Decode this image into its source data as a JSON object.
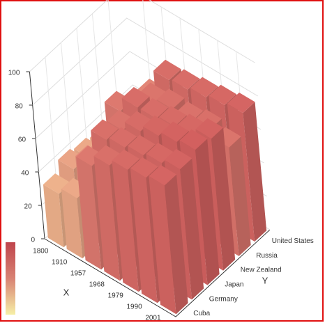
{
  "chart_data": {
    "type": "bar3d",
    "x_name": "X",
    "y_name": "Y",
    "categories": [
      "1800",
      "1910",
      "1957",
      "1968",
      "1979",
      "1990",
      "2001"
    ],
    "series": [
      {
        "name": "Cuba",
        "values": [
          32,
          36,
          62,
          69,
          73,
          75,
          77
        ]
      },
      {
        "name": "Germany",
        "values": [
          38,
          47,
          69,
          71,
          73,
          75,
          78
        ]
      },
      {
        "name": "Japan",
        "values": [
          36,
          44,
          66,
          72,
          76,
          79,
          81
        ]
      },
      {
        "name": "New Zealand",
        "values": [
          34,
          62,
          71,
          71,
          73,
          75,
          79
        ]
      },
      {
        "name": "Russia",
        "values": [
          30,
          33,
          65,
          68,
          67,
          69,
          65
        ]
      },
      {
        "name": "United States",
        "values": [
          39,
          52,
          70,
          71,
          73,
          75,
          77
        ]
      }
    ],
    "zlim": [
      0,
      100
    ],
    "zticks": [
      0,
      20,
      40,
      60,
      80,
      100
    ],
    "colors": [
      "#f6efa6",
      "#d88273",
      "#bf444c"
    ],
    "grid": true
  }
}
